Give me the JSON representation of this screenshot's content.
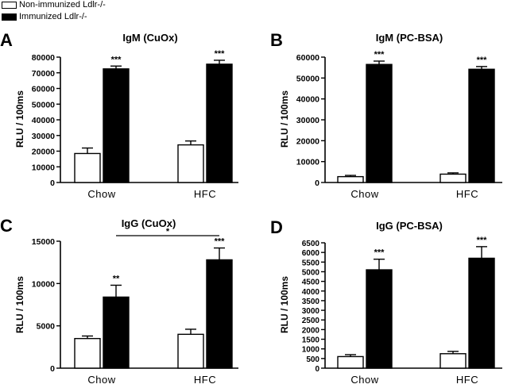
{
  "legend": [
    {
      "label": "Non-immunized Ldlr-/-",
      "color": "#ffffff"
    },
    {
      "label": "Immunized Ldlr-/-",
      "color": "#000000"
    }
  ],
  "chart_data": [
    {
      "panel": "A",
      "type": "bar",
      "title": "IgM (CuOx)",
      "ylabel": "RLU / 100ms",
      "categories": [
        "Chow",
        "HFC"
      ],
      "ylim": [
        0,
        80000
      ],
      "yticks": [
        0,
        10000,
        20000,
        30000,
        40000,
        50000,
        60000,
        70000,
        80000
      ],
      "series": [
        {
          "name": "Non-immunized Ldlr-/-",
          "values": [
            18500,
            24000
          ],
          "errors": [
            3500,
            2500
          ]
        },
        {
          "name": "Immunized Ldlr-/-",
          "values": [
            72500,
            75500
          ],
          "errors": [
            1800,
            2500
          ]
        }
      ],
      "annotations": [
        {
          "category": 0,
          "series": 1,
          "text": "***"
        },
        {
          "category": 1,
          "series": 1,
          "text": "***"
        }
      ]
    },
    {
      "panel": "B",
      "type": "bar",
      "title": "IgM (PC-BSA)",
      "ylabel": "RLU / 100ms",
      "categories": [
        "Chow",
        "HFC"
      ],
      "ylim": [
        0,
        60000
      ],
      "yticks": [
        0,
        10000,
        20000,
        30000,
        40000,
        50000,
        60000
      ],
      "series": [
        {
          "name": "Non-immunized Ldlr-/-",
          "values": [
            2800,
            4000
          ],
          "errors": [
            600,
            600
          ]
        },
        {
          "name": "Immunized Ldlr-/-",
          "values": [
            56500,
            54200
          ],
          "errors": [
            1600,
            1300
          ]
        }
      ],
      "annotations": [
        {
          "category": 0,
          "series": 1,
          "text": "***"
        },
        {
          "category": 1,
          "series": 1,
          "text": "***"
        }
      ]
    },
    {
      "panel": "C",
      "type": "bar",
      "title": "IgG (CuOx)",
      "ylabel": "RLU / 100ms",
      "categories": [
        "Chow",
        "HFC"
      ],
      "ylim": [
        0,
        15000
      ],
      "yticks": [
        0,
        5000,
        10000,
        15000
      ],
      "series": [
        {
          "name": "Non-immunized Ldlr-/-",
          "values": [
            3500,
            4000
          ],
          "errors": [
            300,
            600
          ]
        },
        {
          "name": "Immunized Ldlr-/-",
          "values": [
            8400,
            12800
          ],
          "errors": [
            1400,
            1400
          ]
        }
      ],
      "annotations": [
        {
          "category": 0,
          "series": 1,
          "text": "**"
        },
        {
          "category": 1,
          "series": 1,
          "text": "***"
        }
      ],
      "bracket": {
        "from_category": 0,
        "to_category": 1,
        "series": 1,
        "text": "*"
      }
    },
    {
      "panel": "D",
      "type": "bar",
      "title": "IgG (PC-BSA)",
      "ylabel": "RLU / 100ms",
      "categories": [
        "Chow",
        "HFC"
      ],
      "ylim": [
        0,
        6500
      ],
      "yticks": [
        0,
        500,
        1000,
        1500,
        2000,
        2500,
        3000,
        3500,
        4000,
        4500,
        5000,
        5500,
        6000,
        6500
      ],
      "series": [
        {
          "name": "Non-immunized Ldlr-/-",
          "values": [
            600,
            750
          ],
          "errors": [
            100,
            120
          ]
        },
        {
          "name": "Immunized Ldlr-/-",
          "values": [
            5100,
            5700
          ],
          "errors": [
            550,
            600
          ]
        }
      ],
      "annotations": [
        {
          "category": 0,
          "series": 1,
          "text": "***"
        },
        {
          "category": 1,
          "series": 1,
          "text": "***"
        }
      ]
    }
  ]
}
